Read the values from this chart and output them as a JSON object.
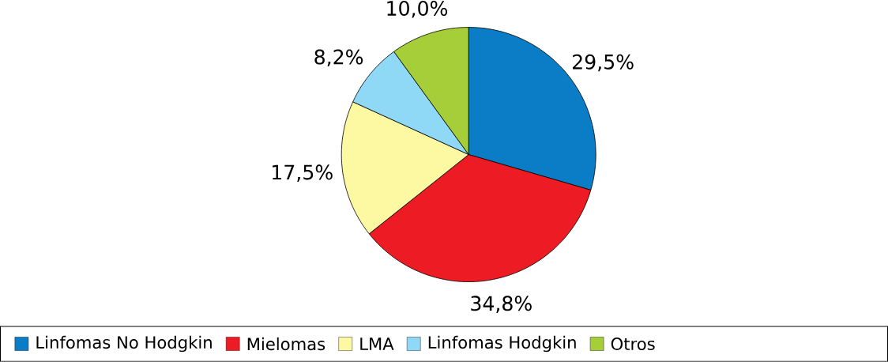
{
  "chart_data": {
    "type": "pie",
    "categories": [
      "Linfomas No Hodgkin",
      "Mielomas",
      "LMA",
      "Linfomas Hodgkin",
      "Otros"
    ],
    "values": [
      29.5,
      34.8,
      17.5,
      8.2,
      10.0
    ],
    "value_labels": [
      "29,5%",
      "34,8%",
      "17,5%",
      "8,2%",
      "10,0%"
    ],
    "colors": [
      "#0a7dc6",
      "#ed1c24",
      "#fdf8a2",
      "#8fd9f6",
      "#a6ce39"
    ],
    "legend": "bottom"
  }
}
